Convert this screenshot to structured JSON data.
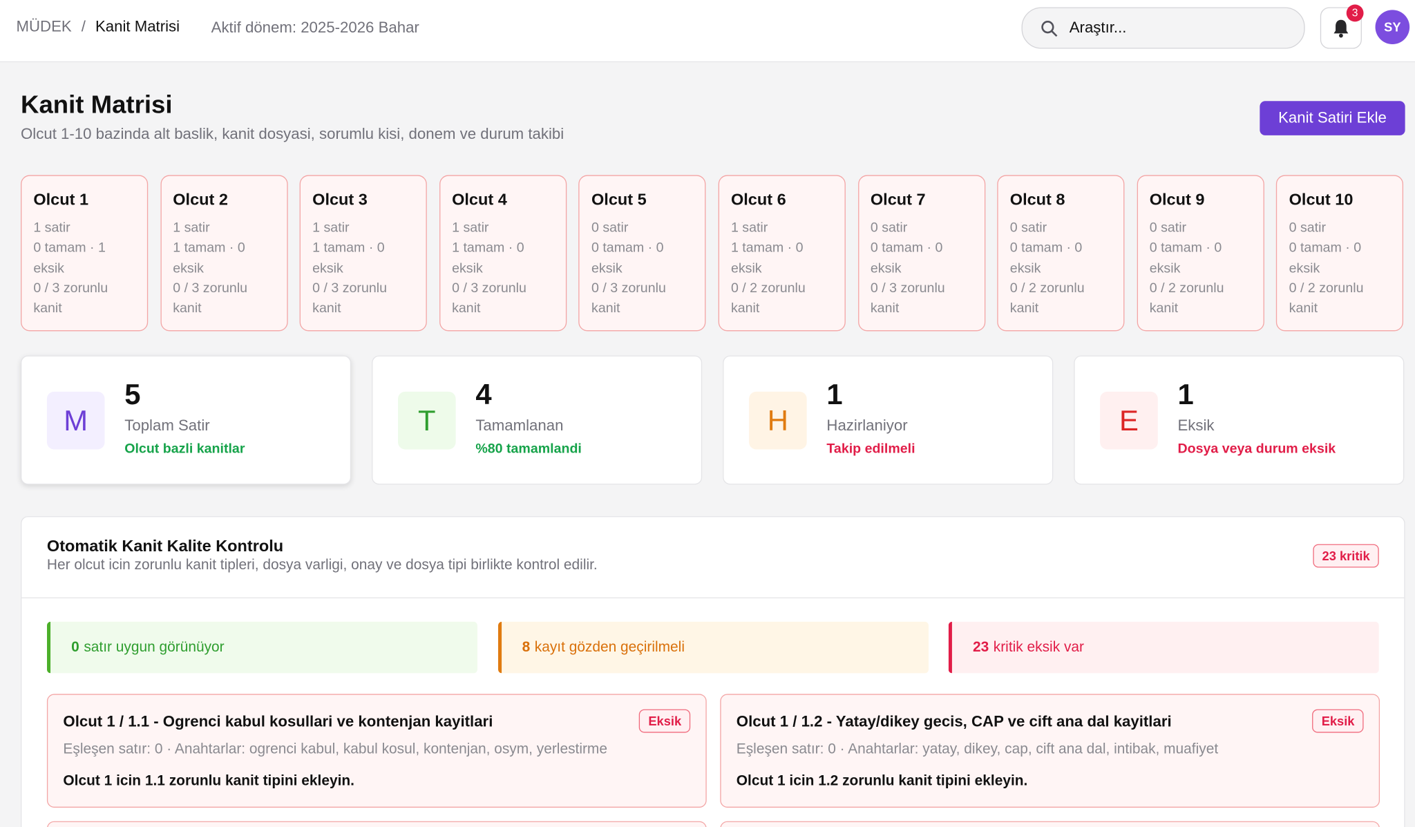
{
  "header": {
    "breadcrumb": [
      "MÜDEK",
      "Kanit Matrisi"
    ],
    "separator": "/",
    "active_term": "Aktif dönem: 2025-2026 Bahar",
    "search_placeholder": "Araştır...",
    "notification_count": 3,
    "avatar": "SY"
  },
  "page": {
    "title": "Kanit Matrisi",
    "subtitle": "Olcut 1-10 bazinda alt baslik, kanit dosyasi, sorumlu kisi, donem ve durum takibi",
    "add_button": "Kanit Satiri Ekle"
  },
  "criteria": [
    {
      "name": "Olcut 1",
      "rows": "1 satir",
      "status": "0 tamam · 1 eksik",
      "required": "0 / 3 zorunlu kanit"
    },
    {
      "name": "Olcut 2",
      "rows": "1 satir",
      "status": "1 tamam · 0 eksik",
      "required": "0 / 3 zorunlu kanit"
    },
    {
      "name": "Olcut 3",
      "rows": "1 satir",
      "status": "1 tamam · 0 eksik",
      "required": "0 / 3 zorunlu kanit"
    },
    {
      "name": "Olcut 4",
      "rows": "1 satir",
      "status": "1 tamam · 0 eksik",
      "required": "0 / 3 zorunlu kanit"
    },
    {
      "name": "Olcut 5",
      "rows": "0 satir",
      "status": "0 tamam · 0 eksik",
      "required": "0 / 3 zorunlu kanit"
    },
    {
      "name": "Olcut 6",
      "rows": "1 satir",
      "status": "1 tamam · 0 eksik",
      "required": "0 / 2 zorunlu kanit"
    },
    {
      "name": "Olcut 7",
      "rows": "0 satir",
      "status": "0 tamam · 0 eksik",
      "required": "0 / 3 zorunlu kanit"
    },
    {
      "name": "Olcut 8",
      "rows": "0 satir",
      "status": "0 tamam · 0 eksik",
      "required": "0 / 2 zorunlu kanit"
    },
    {
      "name": "Olcut 9",
      "rows": "0 satir",
      "status": "0 tamam · 0 eksik",
      "required": "0 / 2 zorunlu kanit"
    },
    {
      "name": "Olcut 10",
      "rows": "0 satir",
      "status": "0 tamam · 0 eksik",
      "required": "0 / 2 zorunlu kanit"
    }
  ],
  "stats": [
    {
      "icon": "M",
      "value": 5,
      "label": "Toplam Satir",
      "note": "Olcut bazli kanitlar"
    },
    {
      "icon": "T",
      "value": 4,
      "label": "Tamamlanan",
      "note": "%80 tamamlandi"
    },
    {
      "icon": "H",
      "value": 1,
      "label": "Hazirlaniyor",
      "note": "Takip edilmeli"
    },
    {
      "icon": "E",
      "value": 1,
      "label": "Eksik",
      "note": "Dosya veya durum eksik"
    }
  ],
  "quality": {
    "title": "Otomatik Kanit Kalite Kontrolu",
    "subtitle": "Her olcut icin zorunlu kanit tipleri, dosya varligi, onay ve dosya tipi birlikte kontrol edilir.",
    "badge": "23 kritik",
    "summary": [
      {
        "count": 0,
        "text": "satır uygun görünüyor"
      },
      {
        "count": 8,
        "text": "kayıt gözden geçirilmeli"
      },
      {
        "count": 23,
        "text": "kritik eksik var"
      }
    ],
    "issues": [
      {
        "title": "Olcut 1 / 1.1 - Ogrenci kabul kosullari ve kontenjan kayitlari",
        "badge": "Eksik",
        "meta": "Eşleşen satır: 0 · Anahtarlar: ogrenci kabul, kabul kosul, kontenjan, osym, yerlestirme",
        "action": "Olcut 1 icin 1.1 zorunlu kanit tipini ekleyin."
      },
      {
        "title": "Olcut 1 / 1.2 - Yatay/dikey gecis, CAP ve cift ana dal kayitlari",
        "badge": "Eksik",
        "meta": "Eşleşen satır: 0 · Anahtarlar: yatay, dikey, cap, cift ana dal, intibak, muafiyet",
        "action": "Olcut 1 icin 1.2 zorunlu kanit tipini ekleyin."
      }
    ]
  }
}
